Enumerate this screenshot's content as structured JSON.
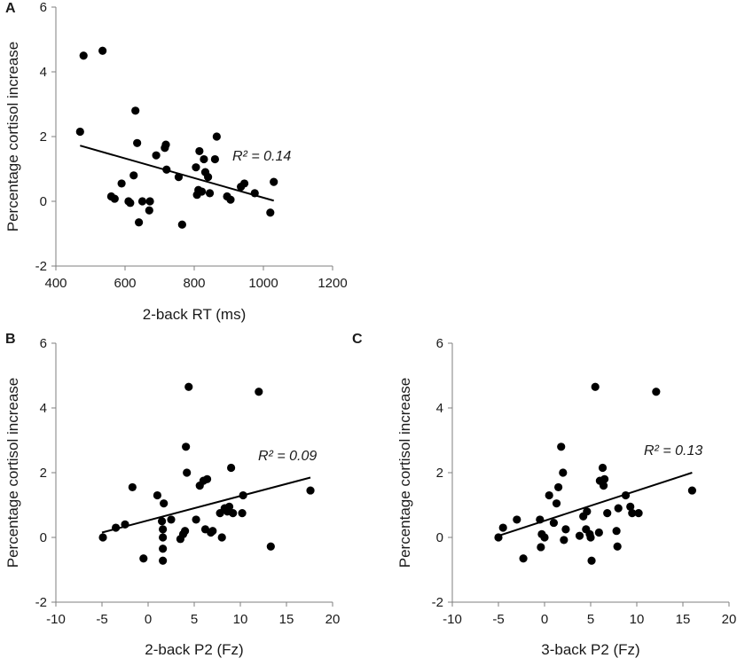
{
  "chart_data": [
    {
      "type": "scatter",
      "panel": "A",
      "xlabel": "2-back RT (ms)",
      "ylabel": "Percentage cortisol increase",
      "xlim": [
        400,
        1200
      ],
      "ylim": [
        -2,
        6
      ],
      "xticks": [
        400,
        600,
        800,
        1000,
        1200
      ],
      "yticks": [
        -2,
        0,
        2,
        4,
        6
      ],
      "annotation": "R² = 0.14",
      "trendline": {
        "x": [
          470,
          1030
        ],
        "y": [
          1.72,
          0.02
        ]
      },
      "points": [
        [
          470,
          2.15
        ],
        [
          480,
          4.5
        ],
        [
          535,
          4.65
        ],
        [
          560,
          0.15
        ],
        [
          570,
          0.08
        ],
        [
          590,
          0.55
        ],
        [
          610,
          0.0
        ],
        [
          615,
          -0.05
        ],
        [
          625,
          0.8
        ],
        [
          630,
          2.8
        ],
        [
          635,
          1.8
        ],
        [
          640,
          -0.65
        ],
        [
          650,
          0.0
        ],
        [
          670,
          -0.28
        ],
        [
          672,
          0.0
        ],
        [
          690,
          1.42
        ],
        [
          715,
          1.65
        ],
        [
          718,
          1.75
        ],
        [
          720,
          0.98
        ],
        [
          755,
          0.75
        ],
        [
          765,
          -0.72
        ],
        [
          805,
          1.05
        ],
        [
          808,
          0.2
        ],
        [
          812,
          0.35
        ],
        [
          815,
          1.55
        ],
        [
          822,
          0.3
        ],
        [
          828,
          1.3
        ],
        [
          832,
          0.9
        ],
        [
          840,
          0.75
        ],
        [
          845,
          0.25
        ],
        [
          860,
          1.3
        ],
        [
          865,
          2.0
        ],
        [
          895,
          0.15
        ],
        [
          905,
          0.05
        ],
        [
          935,
          0.45
        ],
        [
          945,
          0.55
        ],
        [
          975,
          0.25
        ],
        [
          1020,
          -0.35
        ],
        [
          1030,
          0.6
        ]
      ]
    },
    {
      "type": "scatter",
      "panel": "B",
      "xlabel": "2-back P2 (Fz)",
      "ylabel": "Percentage cortisol increase",
      "xlim": [
        -10,
        20
      ],
      "ylim": [
        -2,
        6
      ],
      "xticks": [
        -10,
        -5,
        0,
        5,
        10,
        15,
        20
      ],
      "yticks": [
        -2,
        0,
        2,
        4,
        6
      ],
      "annotation": "R² = 0.09",
      "trendline": {
        "x": [
          -5,
          17.6
        ],
        "y": [
          0.15,
          1.85
        ]
      },
      "points": [
        [
          -4.9,
          0.0
        ],
        [
          -3.5,
          0.3
        ],
        [
          -2.5,
          0.4
        ],
        [
          -1.7,
          1.55
        ],
        [
          -0.5,
          -0.65
        ],
        [
          1.0,
          1.3
        ],
        [
          1.5,
          0.5
        ],
        [
          1.6,
          -0.35
        ],
        [
          1.6,
          0.0
        ],
        [
          1.6,
          0.25
        ],
        [
          1.7,
          1.05
        ],
        [
          1.6,
          -0.72
        ],
        [
          2.5,
          0.55
        ],
        [
          3.5,
          -0.05
        ],
        [
          3.8,
          0.1
        ],
        [
          4.0,
          0.2
        ],
        [
          4.1,
          2.8
        ],
        [
          4.2,
          2.0
        ],
        [
          4.4,
          4.65
        ],
        [
          5.2,
          0.55
        ],
        [
          5.6,
          1.6
        ],
        [
          6.0,
          1.75
        ],
        [
          6.2,
          0.25
        ],
        [
          6.4,
          1.8
        ],
        [
          6.8,
          0.15
        ],
        [
          7.0,
          0.2
        ],
        [
          7.8,
          0.75
        ],
        [
          8.0,
          0.0
        ],
        [
          8.3,
          0.9
        ],
        [
          8.6,
          0.8
        ],
        [
          8.8,
          0.95
        ],
        [
          9.0,
          2.15
        ],
        [
          9.2,
          0.75
        ],
        [
          10.2,
          0.75
        ],
        [
          10.3,
          1.3
        ],
        [
          12.0,
          4.5
        ],
        [
          13.3,
          -0.28
        ],
        [
          17.6,
          1.45
        ]
      ]
    },
    {
      "type": "scatter",
      "panel": "C",
      "xlabel": "3-back P2 (Fz)",
      "ylabel": "Percentage cortisol increase",
      "xlim": [
        -10,
        20
      ],
      "ylim": [
        -2,
        6
      ],
      "xticks": [
        -10,
        -5,
        0,
        5,
        10,
        15,
        20
      ],
      "yticks": [
        -2,
        0,
        2,
        4,
        6
      ],
      "annotation": "R² = 0.13",
      "trendline": {
        "x": [
          -5,
          16
        ],
        "y": [
          0.05,
          2.0
        ]
      },
      "points": [
        [
          -5.0,
          0.0
        ],
        [
          -4.5,
          0.3
        ],
        [
          -3.0,
          0.55
        ],
        [
          -2.3,
          -0.65
        ],
        [
          -0.5,
          0.55
        ],
        [
          -0.3,
          0.1
        ],
        [
          -0.4,
          -0.3
        ],
        [
          0.0,
          0.0
        ],
        [
          0.5,
          1.3
        ],
        [
          1.0,
          0.45
        ],
        [
          1.3,
          1.05
        ],
        [
          1.5,
          1.55
        ],
        [
          1.8,
          2.8
        ],
        [
          2.0,
          2.0
        ],
        [
          2.1,
          -0.08
        ],
        [
          2.3,
          0.25
        ],
        [
          3.8,
          0.05
        ],
        [
          4.2,
          0.65
        ],
        [
          4.5,
          0.25
        ],
        [
          4.6,
          0.8
        ],
        [
          4.9,
          0.1
        ],
        [
          5.0,
          0.0
        ],
        [
          5.1,
          -0.72
        ],
        [
          5.5,
          4.65
        ],
        [
          5.9,
          0.15
        ],
        [
          6.0,
          1.75
        ],
        [
          6.3,
          2.15
        ],
        [
          6.4,
          1.6
        ],
        [
          6.5,
          1.8
        ],
        [
          6.8,
          0.75
        ],
        [
          7.8,
          0.2
        ],
        [
          7.9,
          -0.28
        ],
        [
          8.0,
          0.9
        ],
        [
          8.8,
          1.3
        ],
        [
          9.3,
          0.95
        ],
        [
          9.5,
          0.75
        ],
        [
          10.2,
          0.75
        ],
        [
          12.1,
          4.5
        ],
        [
          16.0,
          1.45
        ]
      ]
    }
  ]
}
